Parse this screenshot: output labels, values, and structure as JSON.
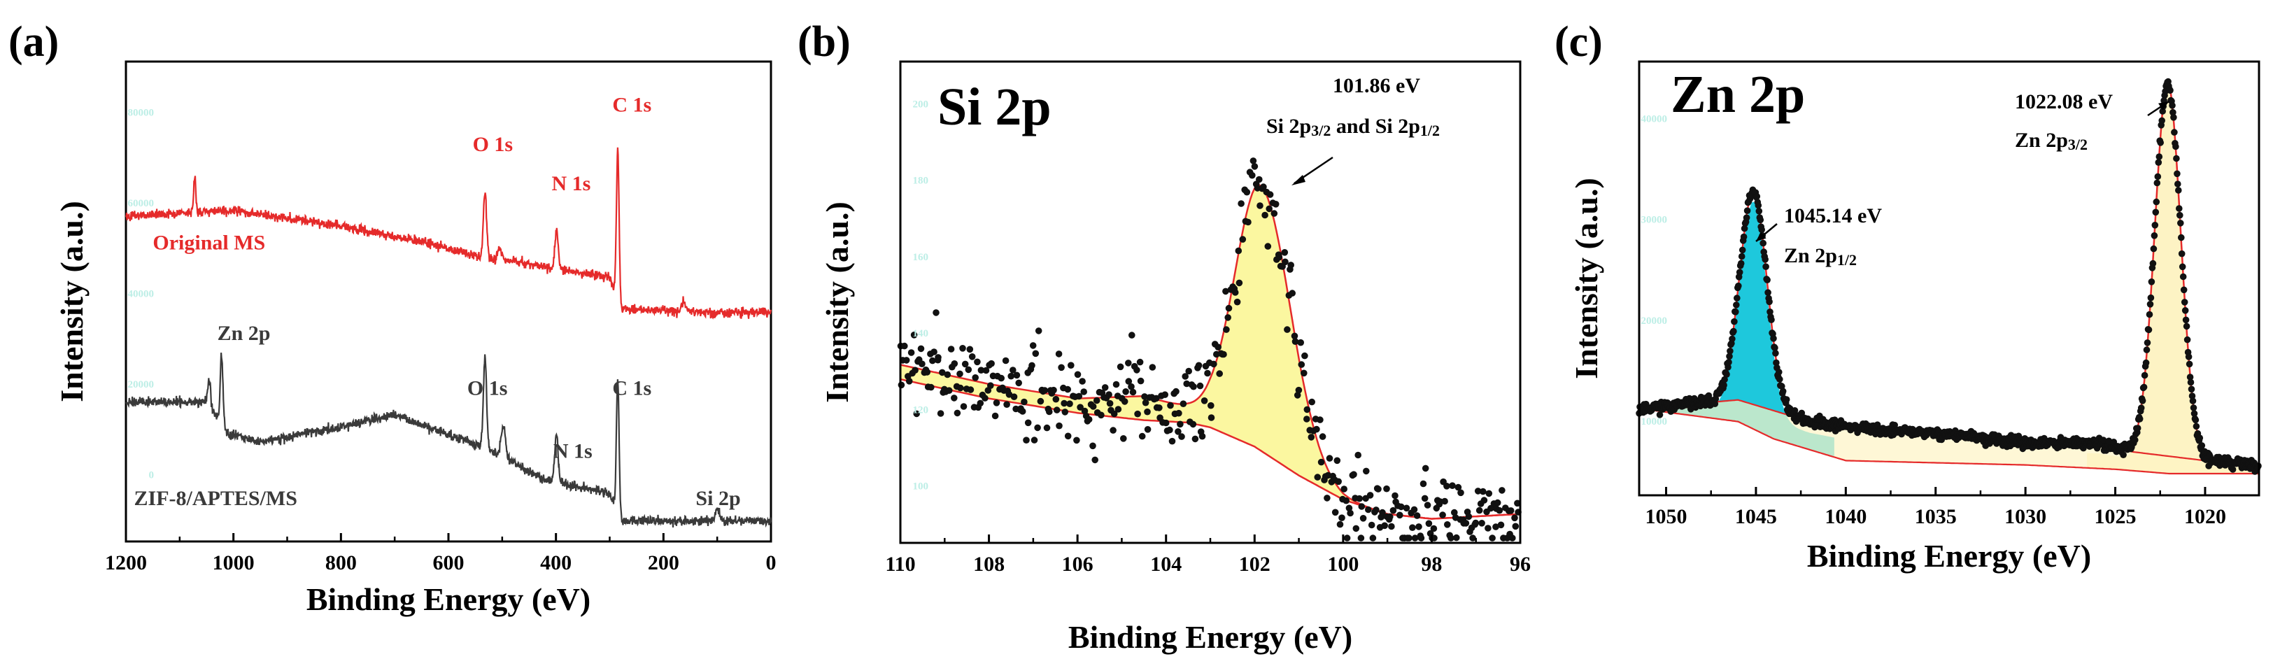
{
  "figure": {
    "colors": {
      "red": "#e52a2a",
      "dark": "#3a3a3a",
      "fill_yellow": "#fbf7a0",
      "fill_cyan": "#1ec8dc",
      "fill_cream": "#fdf3c4",
      "point": "#111111",
      "faint_tick": "#bdeee6"
    }
  },
  "chart_data": [
    {
      "panel_label": "(a)",
      "type": "line",
      "xlabel": "Binding Energy (eV)",
      "ylabel": "Intensity (a.u.)",
      "xlim": [
        1200,
        0
      ],
      "x_ticks": [
        1200,
        1000,
        800,
        600,
        400,
        200,
        0
      ],
      "faint_y_ticks": [
        "80000",
        "60000",
        "40000",
        "20000",
        "0"
      ],
      "series": [
        {
          "name": "Original MS",
          "color": "#e52a2a",
          "baseline": [
            [
              1200,
              0.795
            ],
            [
              1000,
              0.81
            ],
            [
              800,
              0.77
            ],
            [
              650,
              0.73
            ],
            [
              540,
              0.69
            ],
            [
              480,
              0.68
            ],
            [
              400,
              0.66
            ],
            [
              300,
              0.64
            ],
            [
              280,
              0.56
            ],
            [
              200,
              0.555
            ],
            [
              100,
              0.55
            ],
            [
              0,
              0.55
            ]
          ],
          "peaks": [
            {
              "x": 1072,
              "h": 0.09,
              "w": 2
            },
            {
              "x": 532,
              "h": 0.17,
              "w": 3
            },
            {
              "x": 505,
              "h": 0.03,
              "w": 4
            },
            {
              "x": 399,
              "h": 0.1,
              "w": 3
            },
            {
              "x": 285,
              "h": 0.38,
              "w": 2.5
            },
            {
              "x": 163,
              "h": 0.03,
              "w": 3
            }
          ],
          "noise": 0.012,
          "labels": [
            {
              "text": "Original MS",
              "x": 1150,
              "y": 0.71
            },
            {
              "text": "O 1s",
              "x": 555,
              "y": 0.96
            },
            {
              "text": "N 1s",
              "x": 408,
              "y": 0.86
            },
            {
              "text": "C 1s",
              "x": 295,
              "y": 1.06
            }
          ]
        },
        {
          "name": "ZIF-8/APTES/MS",
          "color": "#3a3a3a",
          "baseline": [
            [
              1200,
              0.32
            ],
            [
              1050,
              0.325
            ],
            [
              1010,
              0.24
            ],
            [
              950,
              0.22
            ],
            [
              800,
              0.26
            ],
            [
              700,
              0.29
            ],
            [
              600,
              0.24
            ],
            [
              540,
              0.21
            ],
            [
              480,
              0.17
            ],
            [
              430,
              0.13
            ],
            [
              300,
              0.09
            ],
            [
              280,
              0.02
            ],
            [
              200,
              0.02
            ],
            [
              0,
              0.02
            ]
          ],
          "peaks": [
            {
              "x": 1045,
              "h": 0.06,
              "w": 2.5
            },
            {
              "x": 1022,
              "h": 0.18,
              "w": 2.5
            },
            {
              "x": 532,
              "h": 0.23,
              "w": 3
            },
            {
              "x": 498,
              "h": 0.08,
              "w": 4
            },
            {
              "x": 399,
              "h": 0.12,
              "w": 3
            },
            {
              "x": 285,
              "h": 0.34,
              "w": 2.5
            },
            {
              "x": 100,
              "h": 0.03,
              "w": 4
            }
          ],
          "noise": 0.012,
          "labels": [
            {
              "text": "Zn 2p",
              "x": 1030,
              "y": 0.48
            },
            {
              "text": "O 1s",
              "x": 565,
              "y": 0.34
            },
            {
              "text": "C 1s",
              "x": 295,
              "y": 0.34
            },
            {
              "text": "N 1s",
              "x": 405,
              "y": 0.18
            },
            {
              "text": "ZIF-8/APTES/MS",
              "x": 1185,
              "y": 0.06
            },
            {
              "text": "Si 2p",
              "x": 140,
              "y": 0.06
            }
          ]
        }
      ]
    },
    {
      "panel_label": "(b)",
      "type": "scatter",
      "title": "Si 2p",
      "xlabel": "Binding Energy (eV)",
      "ylabel": "Intensity (a.u.)",
      "xlim": [
        110,
        96
      ],
      "ylim": [
        0,
        1
      ],
      "x_ticks": [
        110,
        108,
        106,
        104,
        102,
        100,
        98,
        96
      ],
      "faint_y_ticks": [
        "200",
        "180",
        "160",
        "140",
        "120",
        "100"
      ],
      "background": [
        [
          110,
          0.34
        ],
        [
          108,
          0.3
        ],
        [
          106,
          0.27
        ],
        [
          104.5,
          0.255
        ],
        [
          103.5,
          0.25
        ],
        [
          103,
          0.24
        ],
        [
          102,
          0.2
        ],
        [
          101,
          0.14
        ],
        [
          100,
          0.09
        ],
        [
          99,
          0.06
        ],
        [
          98,
          0.05
        ],
        [
          96,
          0.06
        ]
      ],
      "peak_fit": {
        "center": 101.86,
        "height": 0.54,
        "sigma_left": 0.58,
        "sigma_right": 0.68
      },
      "envelope_extra": [
        [
          110,
          0.03
        ],
        [
          108,
          0.03
        ],
        [
          106,
          0.03
        ],
        [
          104.5,
          0.05
        ],
        [
          104,
          0.04
        ],
        [
          103.5,
          0.03
        ],
        [
          101,
          0.0
        ],
        [
          96,
          0.0
        ]
      ],
      "scatter": {
        "count": 420,
        "noise": 0.09,
        "seed": 7
      },
      "annotation": {
        "value": "101.86 eV",
        "line2": "Si 2p",
        "sub1": "3/2",
        "mid": " and Si 2p",
        "sub2": "1/2"
      }
    },
    {
      "panel_label": "(c)",
      "type": "scatter",
      "title": "Zn 2p",
      "xlabel": "Binding Energy (eV)",
      "ylabel": "Intensity (a.u.)",
      "xlim": [
        1051.5,
        1017
      ],
      "ylim": [
        0,
        1
      ],
      "x_ticks": [
        1050,
        1045,
        1040,
        1035,
        1030,
        1025,
        1020
      ],
      "faint_y_ticks": [
        "40000",
        "30000",
        "20000",
        "10000"
      ],
      "background": [
        [
          1051.5,
          0.2
        ],
        [
          1046,
          0.17
        ],
        [
          1044,
          0.13
        ],
        [
          1040,
          0.08
        ],
        [
          1035,
          0.075
        ],
        [
          1030,
          0.07
        ],
        [
          1025,
          0.06
        ],
        [
          1022,
          0.05
        ],
        [
          1017,
          0.05
        ]
      ],
      "secondary_background": [
        [
          1051.5,
          0.2
        ],
        [
          1046,
          0.22
        ],
        [
          1042,
          0.17
        ],
        [
          1038,
          0.15
        ],
        [
          1034,
          0.14
        ],
        [
          1030,
          0.12
        ],
        [
          1026,
          0.12
        ],
        [
          1024,
          0.1
        ],
        [
          1022,
          0.09
        ],
        [
          1020,
          0.08
        ],
        [
          1017,
          0.07
        ]
      ],
      "peaks": [
        {
          "name": "Zn 2p1/2",
          "center": 1045.14,
          "height": 0.49,
          "sigma": 0.75,
          "fill": "#1ec8dc"
        },
        {
          "name": "Zn 2p3/2",
          "center": 1022.08,
          "height": 0.86,
          "sigma": 0.72,
          "fill": "#fdf3c4"
        }
      ],
      "scatter": {
        "count": 900,
        "noise": 0.012,
        "seed": 11
      },
      "annotations": [
        {
          "value": "1045.14 eV",
          "line2": "Zn 2p",
          "sub": "1/2"
        },
        {
          "value": "1022.08 eV",
          "line2": "Zn 2p",
          "sub": "3/2"
        }
      ]
    }
  ]
}
